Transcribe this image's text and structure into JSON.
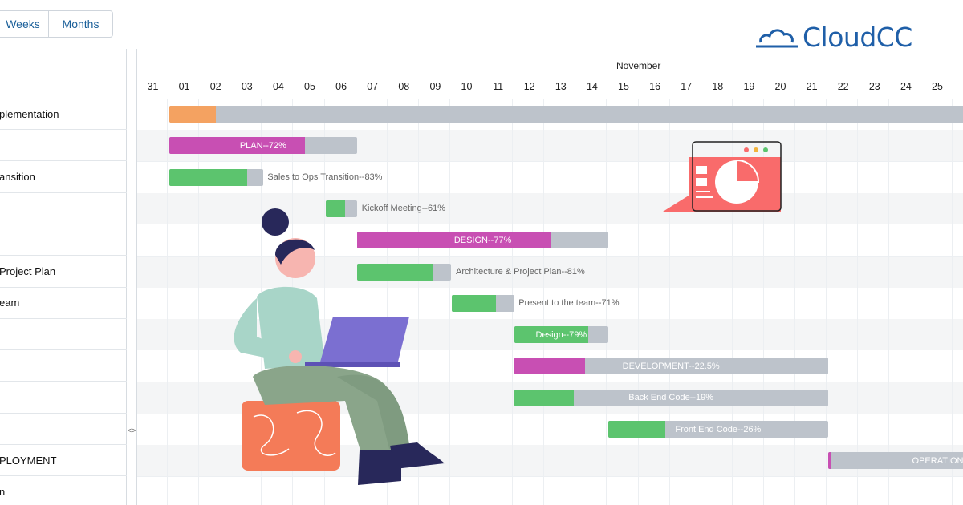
{
  "toolbar": {
    "weeks_label": "Weeks",
    "months_label": "Months"
  },
  "brand": {
    "name": "CloudCC",
    "color": "#1f5fa8"
  },
  "timeline": {
    "month": "November",
    "days": [
      "31",
      "01",
      "02",
      "03",
      "04",
      "05",
      "06",
      "07",
      "08",
      "09",
      "10",
      "11",
      "12",
      "13",
      "14",
      "15",
      "16",
      "17",
      "18",
      "19",
      "20",
      "21",
      "22",
      "23",
      "24",
      "25"
    ]
  },
  "left_rows": [
    "plementation",
    "",
    "ansition",
    "",
    "",
    "Project Plan",
    "eam",
    "",
    "",
    "",
    "",
    "PLOYMENT",
    "n"
  ],
  "tasks": [
    {
      "label": "",
      "progress": 0.05,
      "color": "#f4a261",
      "inside": true
    },
    {
      "label": "PLAN--72%",
      "progress": 0.72,
      "color": "#c84fb3",
      "inside": true
    },
    {
      "label": "Sales to Ops Transition--83%",
      "progress": 0.83,
      "color": "#5cc46e",
      "inside": false
    },
    {
      "label": "Kickoff Meeting--61%",
      "progress": 0.61,
      "color": "#5cc46e",
      "inside": false
    },
    {
      "label": "DESIGN--77%",
      "progress": 0.77,
      "color": "#c84fb3",
      "inside": true
    },
    {
      "label": "Architecture & Project Plan--81%",
      "progress": 0.81,
      "color": "#5cc46e",
      "inside": false
    },
    {
      "label": "Present to the team--71%",
      "progress": 0.71,
      "color": "#5cc46e",
      "inside": false
    },
    {
      "label": "Design--79%",
      "progress": 0.79,
      "color": "#5cc46e",
      "inside": true
    },
    {
      "label": "DEVELOPMENT--22.5%",
      "progress": 0.225,
      "color": "#c84fb3",
      "inside": true
    },
    {
      "label": "Back End Code--19%",
      "progress": 0.19,
      "color": "#5cc46e",
      "inside": true
    },
    {
      "label": "Front End Code--26%",
      "progress": 0.26,
      "color": "#5cc46e",
      "inside": true
    },
    {
      "label": "OPERATIONS DEPL",
      "progress": 0.01,
      "color": "#c84fb3",
      "inside": true
    }
  ],
  "colors": {
    "accent_blue": "#1a5f99",
    "track": "#bdc3cb",
    "grid": "#eceff2"
  }
}
